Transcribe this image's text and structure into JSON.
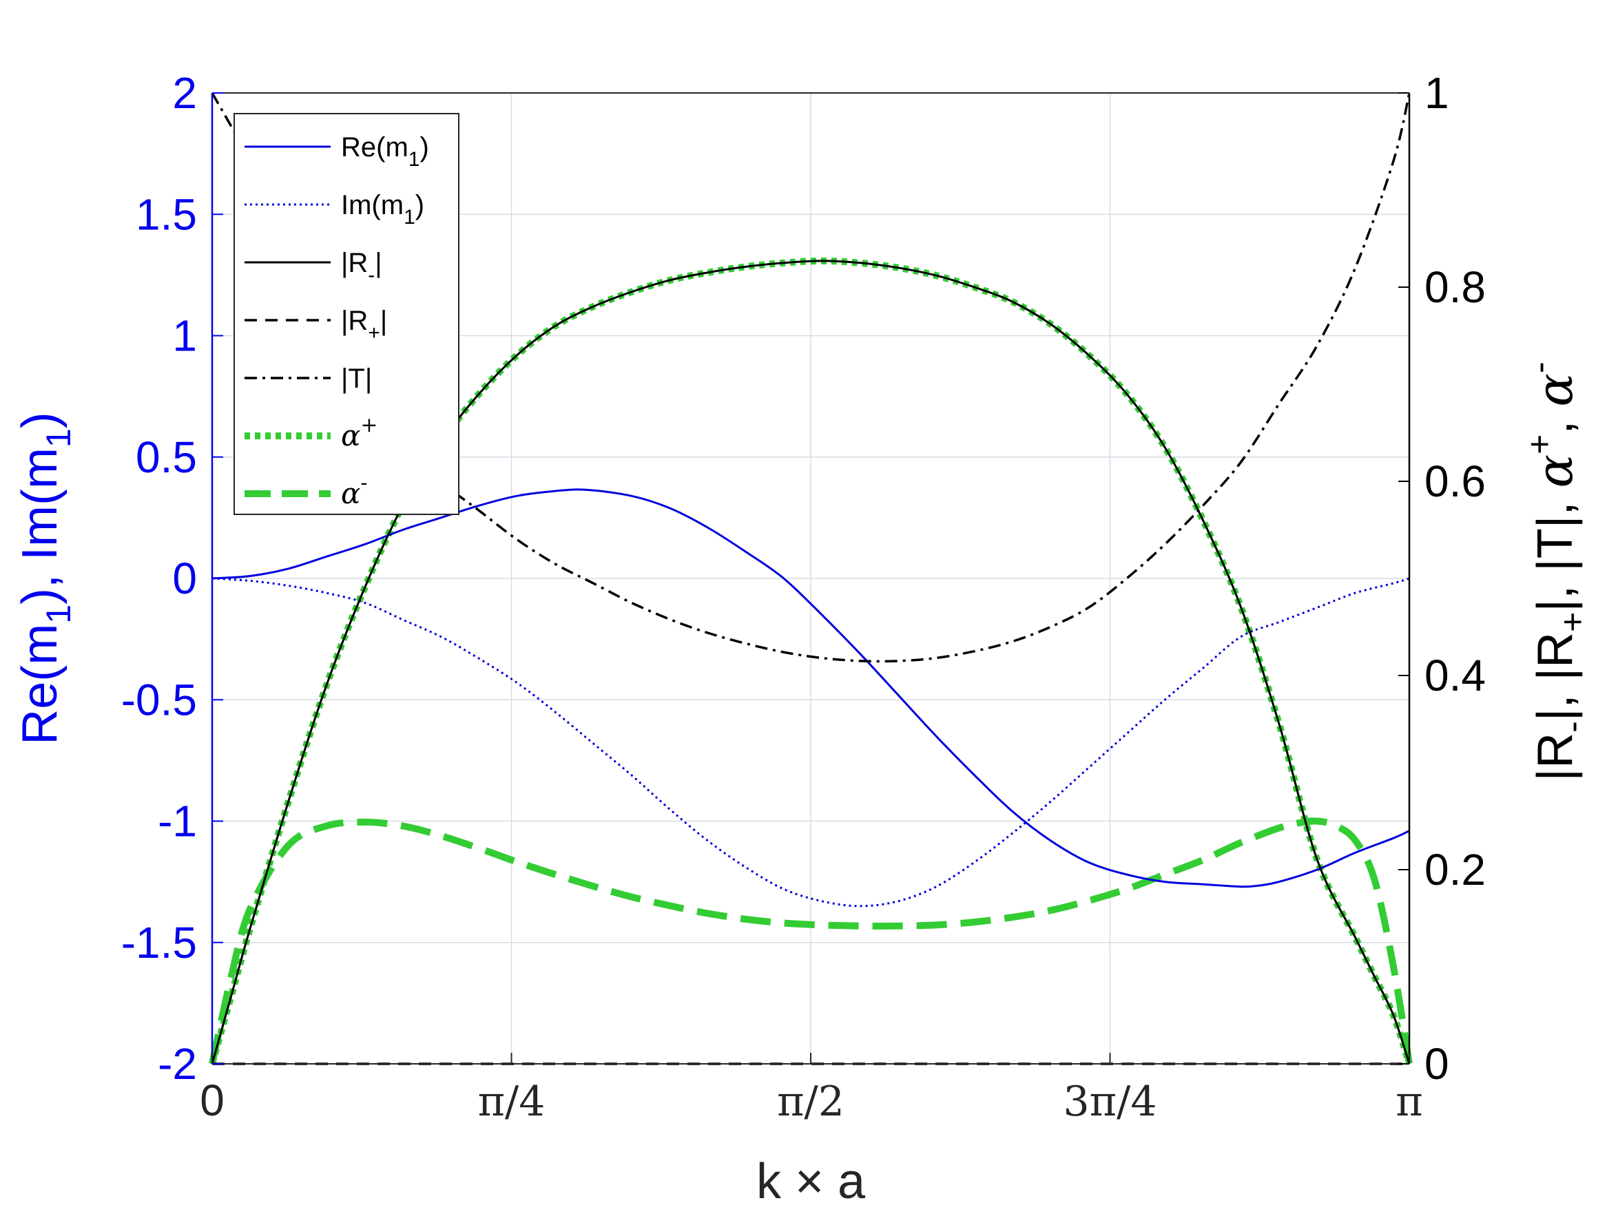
{
  "chart_data": {
    "type": "line",
    "xlabel": "k × a",
    "xlim": [
      0,
      3.14159
    ],
    "x_ticks": [
      {
        "value": 0,
        "label": "0"
      },
      {
        "value": 0.7854,
        "label": "π/4"
      },
      {
        "value": 1.5708,
        "label": "π/2"
      },
      {
        "value": 2.3562,
        "label": "3π/4"
      },
      {
        "value": 3.14159,
        "label": "π"
      }
    ],
    "left_axis": {
      "label": "Re(m1), Im(m1)",
      "label_main": "Re(m",
      "label_sub": "1",
      "label_mid": "), Im(m",
      "label_sub2": "1",
      "label_end": ")",
      "ylim": [
        -2,
        2
      ],
      "ticks": [
        2,
        1.5,
        1,
        0.5,
        0,
        -0.5,
        -1,
        -1.5,
        -2
      ],
      "tick_labels": [
        "2",
        "1.5",
        "1",
        "0.5",
        "0",
        "-0.5",
        "-1",
        "-1.5",
        "-2"
      ],
      "color": "#0000ee"
    },
    "right_axis": {
      "label": "|R-|, |R+|, |T|, α+, α-",
      "ylim": [
        0,
        1
      ],
      "ticks": [
        1,
        0.8,
        0.6,
        0.4,
        0.2,
        0
      ],
      "tick_labels": [
        "1",
        "0.8",
        "0.6",
        "0.4",
        "0.2",
        "0"
      ],
      "color": "#000000"
    },
    "grid": true,
    "legend_position": "top-left",
    "series": [
      {
        "name": "Re(m1)",
        "axis": "left",
        "color": "#0000dd",
        "style": "solid",
        "x": [
          0,
          0.1,
          0.2,
          0.3,
          0.4,
          0.5,
          0.6,
          0.7,
          0.8,
          0.9,
          0.98,
          1.1,
          1.2,
          1.3,
          1.4,
          1.5,
          1.6,
          1.7,
          1.8,
          1.9,
          2.0,
          2.1,
          2.2,
          2.3,
          2.4,
          2.5,
          2.6,
          2.7,
          2.75,
          2.8,
          2.9,
          3.0,
          3.1,
          3.1416
        ],
        "y": [
          0,
          0.01,
          0.04,
          0.09,
          0.14,
          0.2,
          0.25,
          0.3,
          0.34,
          0.36,
          0.365,
          0.34,
          0.29,
          0.21,
          0.11,
          0.0,
          -0.15,
          -0.31,
          -0.48,
          -0.65,
          -0.81,
          -0.96,
          -1.08,
          -1.17,
          -1.22,
          -1.25,
          -1.26,
          -1.27,
          -1.265,
          -1.25,
          -1.2,
          -1.13,
          -1.07,
          -1.04
        ]
      },
      {
        "name": "Im(m1)",
        "axis": "left",
        "color": "#0000dd",
        "style": "dotted",
        "x": [
          0,
          0.1,
          0.2,
          0.3,
          0.4,
          0.5,
          0.6,
          0.7,
          0.8,
          0.9,
          1.0,
          1.1,
          1.2,
          1.3,
          1.4,
          1.5,
          1.6,
          1.7,
          1.8,
          1.9,
          2.0,
          2.1,
          2.2,
          2.3,
          2.4,
          2.5,
          2.6,
          2.7,
          2.8,
          2.9,
          3.0,
          3.1,
          3.1416
        ],
        "y": [
          0,
          -0.01,
          -0.03,
          -0.06,
          -0.1,
          -0.17,
          -0.24,
          -0.33,
          -0.43,
          -0.55,
          -0.68,
          -0.81,
          -0.95,
          -1.08,
          -1.19,
          -1.28,
          -1.33,
          -1.35,
          -1.33,
          -1.27,
          -1.17,
          -1.05,
          -0.92,
          -0.78,
          -0.64,
          -0.5,
          -0.37,
          -0.24,
          -0.18,
          -0.12,
          -0.06,
          -0.02,
          0
        ]
      },
      {
        "name": "|R-|",
        "axis": "right",
        "color": "#000000",
        "style": "solid",
        "x": [
          0,
          0.05,
          0.1,
          0.2,
          0.3,
          0.4,
          0.5,
          0.6,
          0.7,
          0.8,
          0.9,
          1.0,
          1.1,
          1.2,
          1.3,
          1.4,
          1.5,
          1.6,
          1.7,
          1.8,
          1.9,
          2.0,
          2.1,
          2.2,
          2.3,
          2.4,
          2.5,
          2.6,
          2.7,
          2.8,
          2.9,
          3.0,
          3.05,
          3.1,
          3.1416
        ],
        "y": [
          0.0,
          0.07,
          0.14,
          0.27,
          0.39,
          0.49,
          0.575,
          0.64,
          0.69,
          0.73,
          0.76,
          0.78,
          0.795,
          0.807,
          0.815,
          0.821,
          0.825,
          0.827,
          0.825,
          0.82,
          0.812,
          0.8,
          0.785,
          0.762,
          0.73,
          0.69,
          0.635,
          0.56,
          0.47,
          0.35,
          0.21,
          0.13,
          0.09,
          0.05,
          0.0
        ]
      },
      {
        "name": "|R+|",
        "axis": "right",
        "color": "#000000",
        "style": "dashed",
        "x": [
          0,
          3.1416
        ],
        "y": [
          0.0,
          0.0
        ]
      },
      {
        "name": "|T|",
        "axis": "right",
        "color": "#000000",
        "style": "dashdot",
        "x": [
          0,
          0.1,
          0.2,
          0.3,
          0.4,
          0.5,
          0.6,
          0.7,
          0.8,
          0.9,
          1.0,
          1.1,
          1.2,
          1.3,
          1.4,
          1.5,
          1.6,
          1.7,
          1.8,
          1.9,
          2.0,
          2.1,
          2.2,
          2.3,
          2.4,
          2.5,
          2.6,
          2.7,
          2.8,
          2.9,
          3.0,
          3.1,
          3.1416
        ],
        "y": [
          1.0,
          0.93,
          0.85,
          0.77,
          0.7,
          0.64,
          0.6,
          0.57,
          0.54,
          0.515,
          0.495,
          0.475,
          0.458,
          0.444,
          0.433,
          0.424,
          0.418,
          0.415,
          0.415,
          0.418,
          0.425,
          0.435,
          0.45,
          0.47,
          0.5,
          0.535,
          0.575,
          0.62,
          0.68,
          0.74,
          0.82,
          0.93,
          1.0
        ]
      },
      {
        "name": "α+",
        "axis": "right",
        "color": "#33cc33",
        "style": "dotted-thick",
        "x": [
          0,
          0.05,
          0.1,
          0.2,
          0.3,
          0.4,
          0.5,
          0.6,
          0.7,
          0.8,
          0.9,
          1.0,
          1.1,
          1.2,
          1.3,
          1.4,
          1.5,
          1.6,
          1.7,
          1.8,
          1.9,
          2.0,
          2.1,
          2.2,
          2.3,
          2.4,
          2.5,
          2.6,
          2.7,
          2.8,
          2.9,
          3.0,
          3.05,
          3.1,
          3.1416
        ],
        "y": [
          0.0,
          0.07,
          0.14,
          0.27,
          0.39,
          0.49,
          0.575,
          0.64,
          0.69,
          0.73,
          0.76,
          0.78,
          0.795,
          0.807,
          0.815,
          0.821,
          0.825,
          0.827,
          0.825,
          0.82,
          0.812,
          0.8,
          0.785,
          0.762,
          0.73,
          0.69,
          0.635,
          0.56,
          0.47,
          0.35,
          0.21,
          0.13,
          0.09,
          0.05,
          0.0
        ]
      },
      {
        "name": "α-",
        "axis": "right",
        "color": "#33cc33",
        "style": "dashed-thick",
        "x": [
          0,
          0.05,
          0.1,
          0.2,
          0.3,
          0.4,
          0.5,
          0.6,
          0.7,
          0.8,
          0.9,
          1.0,
          1.1,
          1.2,
          1.3,
          1.4,
          1.5,
          1.6,
          1.7,
          1.8,
          1.9,
          2.0,
          2.1,
          2.2,
          2.3,
          2.4,
          2.5,
          2.6,
          2.7,
          2.8,
          2.85,
          2.9,
          2.95,
          3.0,
          3.05,
          3.1,
          3.1416
        ],
        "y": [
          0.0,
          0.09,
          0.16,
          0.225,
          0.245,
          0.249,
          0.245,
          0.235,
          0.222,
          0.208,
          0.195,
          0.183,
          0.172,
          0.163,
          0.155,
          0.149,
          0.145,
          0.143,
          0.142,
          0.142,
          0.143,
          0.146,
          0.151,
          0.158,
          0.168,
          0.18,
          0.195,
          0.21,
          0.228,
          0.243,
          0.248,
          0.25,
          0.245,
          0.23,
          0.19,
          0.1,
          0.0
        ]
      }
    ],
    "legend": [
      {
        "label": "Re(m",
        "sub": "1",
        "tail": ")",
        "sup": "",
        "greek": false
      },
      {
        "label": "Im(m",
        "sub": "1",
        "tail": ")",
        "sup": "",
        "greek": false
      },
      {
        "label": "|R",
        "sub": "-",
        "tail": "|",
        "sup": "",
        "greek": false
      },
      {
        "label": "|R",
        "sub": "+",
        "tail": "|",
        "sup": "",
        "greek": false
      },
      {
        "label": "|T|",
        "sub": "",
        "tail": "",
        "sup": "",
        "greek": false
      },
      {
        "label": "α",
        "sub": "",
        "tail": "",
        "sup": "+",
        "greek": true
      },
      {
        "label": "α",
        "sub": "",
        "tail": "",
        "sup": "-",
        "greek": true
      }
    ]
  }
}
